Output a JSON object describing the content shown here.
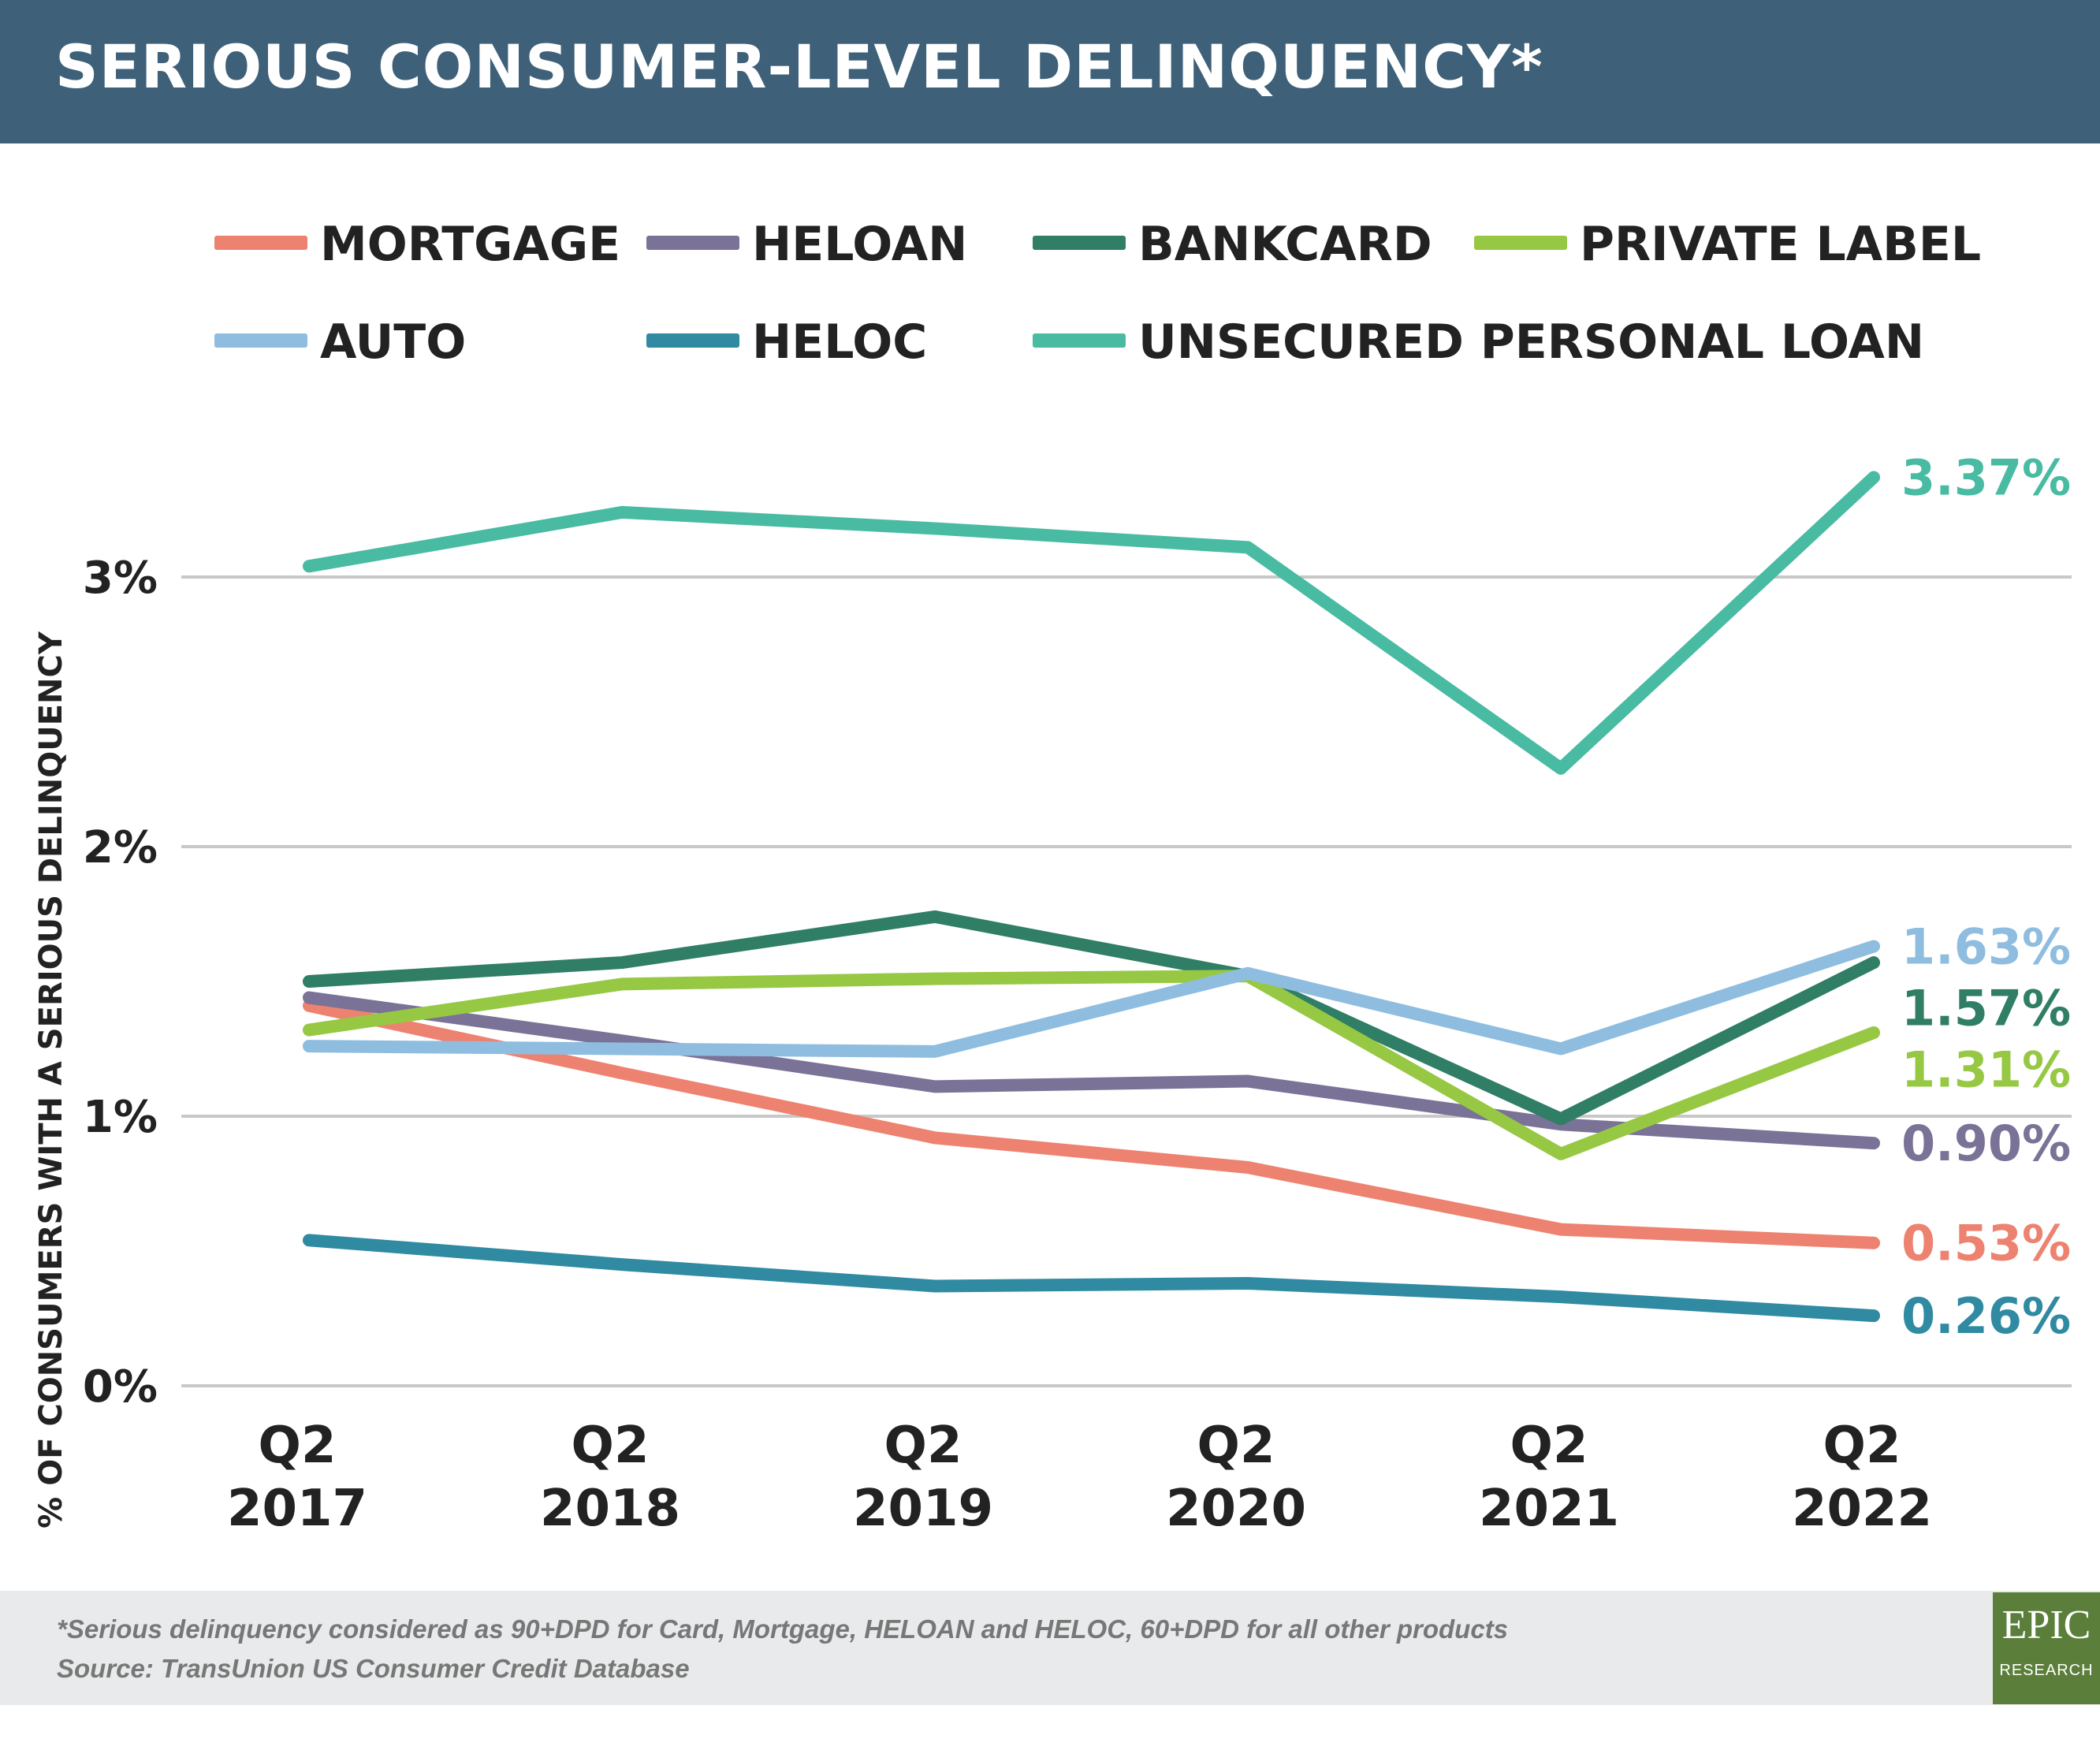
{
  "header": {
    "title": "SERIOUS CONSUMER-LEVEL DELINQUENCY*"
  },
  "footer": {
    "note": "*Serious delinquency considered as 90+DPD for Card, Mortgage, HELOAN and HELOC, 60+DPD for all other products",
    "source": "Source: TransUnion US Consumer Credit Database"
  },
  "logo": {
    "top": "EPIC",
    "bottom": "RESEARCH"
  },
  "chart_data": {
    "type": "line",
    "title": "SERIOUS CONSUMER-LEVEL DELINQUENCY*",
    "ylabel": "% OF CONSUMERS WITH A SERIOUS DELINQUENCY",
    "xlabel": "",
    "ylim": [
      0,
      3.5
    ],
    "yticks": [
      0,
      1,
      2,
      3
    ],
    "ytick_labels": [
      "0%",
      "1%",
      "2%",
      "3%"
    ],
    "grid": "horizontal",
    "legend_position": "top",
    "categories": [
      [
        "Q2",
        "2017"
      ],
      [
        "Q2",
        "2018"
      ],
      [
        "Q2",
        "2019"
      ],
      [
        "Q2",
        "2020"
      ],
      [
        "Q2",
        "2021"
      ],
      [
        "Q2",
        "2022"
      ]
    ],
    "series": [
      {
        "name": "MORTGAGE",
        "color": "#ee8270",
        "values": [
          1.41,
          1.16,
          0.92,
          0.81,
          0.58,
          0.53
        ],
        "end_label": "0.53%"
      },
      {
        "name": "HELOAN",
        "color": "#7a7297",
        "values": [
          1.44,
          1.28,
          1.11,
          1.13,
          0.97,
          0.9
        ],
        "end_label": "0.90%"
      },
      {
        "name": "BANKCARD",
        "color": "#2f7e65",
        "values": [
          1.5,
          1.57,
          1.74,
          1.52,
          0.99,
          1.57
        ],
        "end_label": "1.57%"
      },
      {
        "name": "PRIVATE LABEL",
        "color": "#97c844",
        "values": [
          1.32,
          1.49,
          1.51,
          1.52,
          0.86,
          1.31
        ],
        "end_label": "1.31%"
      },
      {
        "name": "AUTO",
        "color": "#8fbddf",
        "values": [
          1.26,
          1.25,
          1.24,
          1.53,
          1.25,
          1.63
        ],
        "end_label": "1.63%"
      },
      {
        "name": "HELOC",
        "color": "#2f8aa2",
        "values": [
          0.54,
          0.45,
          0.37,
          0.38,
          0.33,
          0.26
        ],
        "end_label": "0.26%"
      },
      {
        "name": "UNSECURED PERSONAL LOAN",
        "color": "#48bba2",
        "values": [
          3.04,
          3.24,
          3.18,
          3.11,
          2.29,
          3.37
        ],
        "end_label": "3.37%"
      }
    ]
  }
}
